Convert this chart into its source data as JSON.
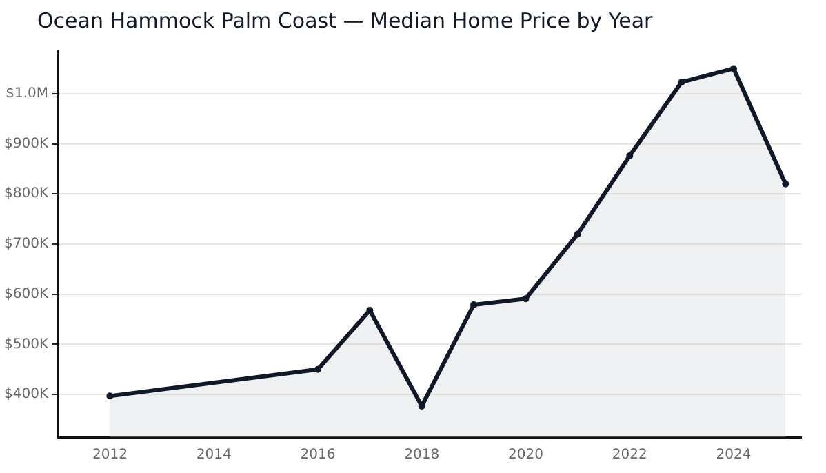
{
  "chart_data": {
    "type": "area",
    "title": "Ocean Hammock Palm Coast — Median Home Price by Year",
    "x": [
      2012,
      2016,
      2017,
      2018,
      2019,
      2020,
      2021,
      2022,
      2023,
      2024,
      2025
    ],
    "series": [
      {
        "color": "#111827",
        "values": [
          397000,
          450000,
          568000,
          377000,
          579000,
          591000,
          720000,
          876000,
          1023000,
          1050000,
          820000
        ]
      }
    ],
    "xlim": [
      2011,
      2025.3
    ],
    "xticks": [
      2012,
      2014,
      2016,
      2018,
      2020,
      2022,
      2024
    ],
    "ylim": [
      315000,
      1085000
    ],
    "yticks": [
      {
        "value": 400000,
        "label": "$400K"
      },
      {
        "value": 500000,
        "label": "$500K"
      },
      {
        "value": 600000,
        "label": "$600K"
      },
      {
        "value": 700000,
        "label": "$700K"
      },
      {
        "value": 800000,
        "label": "$800K"
      },
      {
        "value": 900000,
        "label": "$900K"
      },
      {
        "value": 1000000,
        "label": "$1.0M"
      }
    ],
    "grid": "y",
    "marker": "circle",
    "line_style": "solid",
    "legend": false
  }
}
